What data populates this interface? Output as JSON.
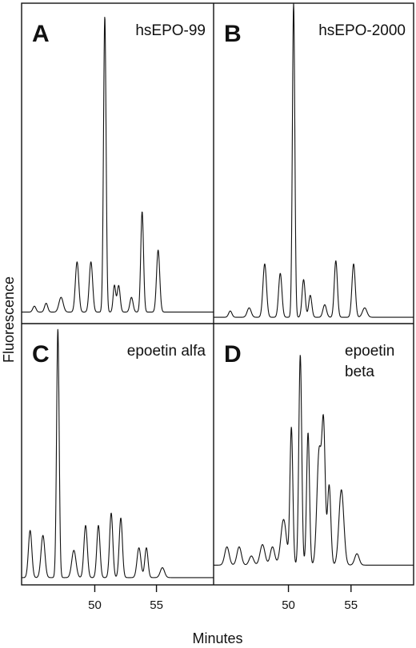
{
  "chart_data": {
    "type": "line",
    "xlabel": "Minutes",
    "ylabel": "Fluorescence",
    "x_ticks": [
      50,
      55
    ],
    "panels": [
      {
        "letter": "A",
        "label": [
          "hsEPO-99"
        ],
        "xlim": [
          44,
          62
        ],
        "baseline": 0.02,
        "peaks": [
          [
            45.2,
            0.02,
            0.15
          ],
          [
            46.3,
            0.03,
            0.15
          ],
          [
            47.7,
            0.05,
            0.2
          ],
          [
            49.2,
            0.17,
            0.16
          ],
          [
            50.5,
            0.17,
            0.16
          ],
          [
            51.8,
            1.0,
            0.12
          ],
          [
            52.7,
            0.09,
            0.12
          ],
          [
            53.1,
            0.09,
            0.14
          ],
          [
            54.3,
            0.05,
            0.15
          ],
          [
            55.3,
            0.34,
            0.13
          ],
          [
            56.8,
            0.21,
            0.15
          ]
        ]
      },
      {
        "letter": "B",
        "label": [
          "hsEPO-2000"
        ],
        "xlim": [
          44,
          62
        ],
        "baseline": 0.01,
        "peaks": [
          [
            45.5,
            0.02,
            0.15
          ],
          [
            47.2,
            0.03,
            0.18
          ],
          [
            48.6,
            0.17,
            0.16
          ],
          [
            50.0,
            0.14,
            0.15
          ],
          [
            51.2,
            1.0,
            0.11
          ],
          [
            52.1,
            0.12,
            0.14
          ],
          [
            52.7,
            0.07,
            0.14
          ],
          [
            54.0,
            0.04,
            0.16
          ],
          [
            55.0,
            0.18,
            0.14
          ],
          [
            56.6,
            0.17,
            0.15
          ],
          [
            57.6,
            0.03,
            0.2
          ]
        ]
      },
      {
        "letter": "C",
        "label": [
          "epoetin alfa"
        ],
        "xlim": [
          44,
          62
        ],
        "baseline": 0.01,
        "peaks": [
          [
            44.8,
            0.19,
            0.16
          ],
          [
            46.0,
            0.17,
            0.18
          ],
          [
            47.4,
            1.0,
            0.12
          ],
          [
            48.9,
            0.11,
            0.2
          ],
          [
            50.0,
            0.21,
            0.16
          ],
          [
            51.2,
            0.21,
            0.15
          ],
          [
            52.4,
            0.26,
            0.15
          ],
          [
            53.3,
            0.24,
            0.15
          ],
          [
            55.0,
            0.12,
            0.18
          ],
          [
            55.7,
            0.12,
            0.15
          ],
          [
            57.2,
            0.04,
            0.2
          ]
        ]
      },
      {
        "letter": "D",
        "label": [
          "epoetin",
          "beta"
        ],
        "xlim": [
          44,
          62
        ],
        "baseline": 0.02,
        "peaks": [
          [
            45.2,
            0.08,
            0.2
          ],
          [
            46.3,
            0.08,
            0.2
          ],
          [
            47.4,
            0.04,
            0.2
          ],
          [
            48.4,
            0.09,
            0.22
          ],
          [
            49.3,
            0.08,
            0.2
          ],
          [
            50.3,
            0.2,
            0.25
          ],
          [
            51.0,
            0.6,
            0.13
          ],
          [
            51.8,
            0.92,
            0.13
          ],
          [
            52.5,
            0.58,
            0.13
          ],
          [
            53.5,
            0.5,
            0.2
          ],
          [
            53.9,
            0.58,
            0.15
          ],
          [
            54.4,
            0.35,
            0.15
          ],
          [
            55.5,
            0.33,
            0.22
          ],
          [
            56.9,
            0.05,
            0.2
          ]
        ]
      }
    ]
  }
}
